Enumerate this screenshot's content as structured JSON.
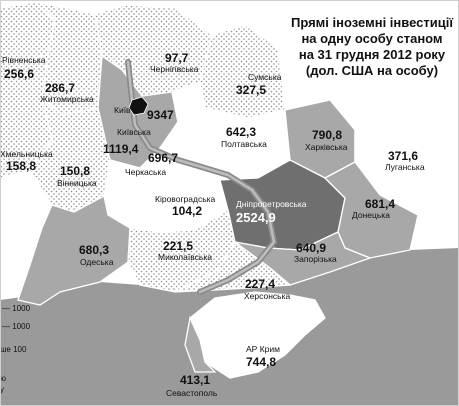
{
  "title": {
    "line1": "Прямі іноземні інвестиції",
    "line2": "на одну особу станом",
    "line3": "на 31 грудня 2012 року",
    "line4": "(дол. США на особу)"
  },
  "legend": {
    "l1": "— 1000",
    "l2": "— 1000",
    "l3": "ше 100",
    "l4": "ю",
    "l5": "у"
  },
  "colors": {
    "light": "#ffffff",
    "mid": "#a8a8a8",
    "dark": "#6f6f6f",
    "sea": "#9a9a9a",
    "border": "#ffffff"
  },
  "regions": {
    "rivne": {
      "value": "256,6",
      "name": "Рівненська"
    },
    "zhytomyr": {
      "value": "286,7",
      "name": "Житомирська"
    },
    "chernihiv": {
      "value": "97,7",
      "name": "Чернігівська"
    },
    "sumy": {
      "value": "327,5",
      "name": "Сумська"
    },
    "kyiv_city": {
      "value": "9347",
      "name": "Київ"
    },
    "kyiv_obl": {
      "value": "1119,4",
      "name": "Київська"
    },
    "khmelnytskyi": {
      "value": "158,8",
      "name": "Хмельницька"
    },
    "vinnytsia": {
      "value": "150,8",
      "name": "Вінницька"
    },
    "cherkasy": {
      "value": "696,7",
      "name": "Черкаська"
    },
    "poltava": {
      "value": "642,3",
      "name": "Полтавська"
    },
    "kharkiv": {
      "value": "790,8",
      "name": "Харківська"
    },
    "luhansk": {
      "value": "371,6",
      "name": "Луганська"
    },
    "kirovohrad": {
      "value": "104,2",
      "name": "Кіровоградська"
    },
    "dnipro": {
      "value": "2524,9",
      "name": "Дніпропетровська"
    },
    "donetsk": {
      "value": "681,4",
      "name": "Донецька"
    },
    "odesa": {
      "value": "680,3",
      "name": "Одеська"
    },
    "mykolaiv": {
      "value": "221,5",
      "name": "Миколаївська"
    },
    "zaporizhzhia": {
      "value": "640,9",
      "name": "Запорізька"
    },
    "kherson": {
      "value": "227,4",
      "name": "Херсонська"
    },
    "crimea": {
      "value": "744,8",
      "name": "АР Крим"
    },
    "sevastopol": {
      "value": "413,1",
      "name": "Севастополь"
    }
  }
}
